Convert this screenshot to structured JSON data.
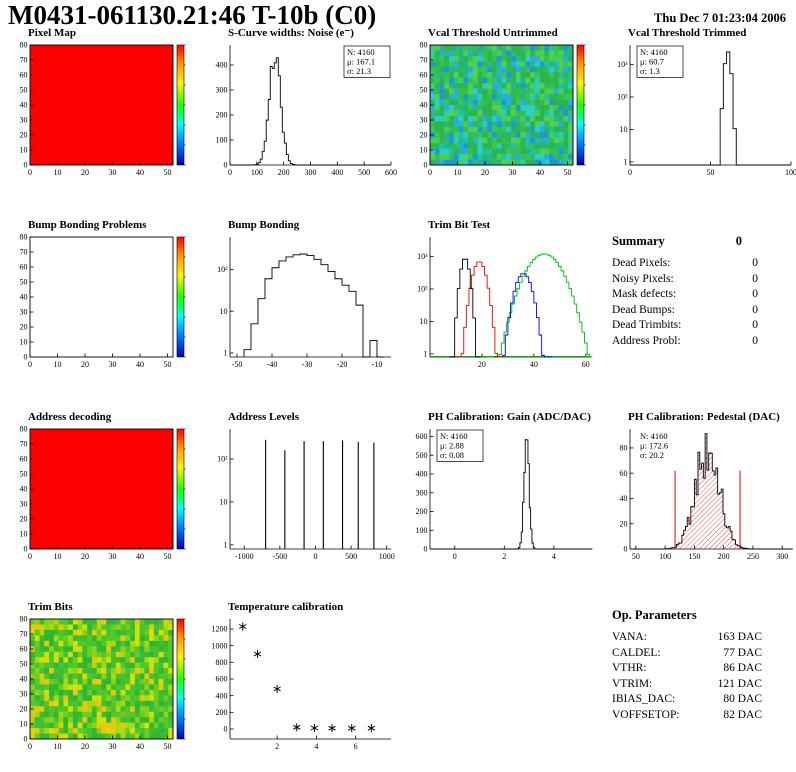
{
  "header": {
    "title": "M0431-061130.21:46 T-10b (C0)",
    "date": "Thu Dec 7 01:23:04 2006"
  },
  "summary": {
    "title": "Summary",
    "value": "0",
    "rows": [
      {
        "label": "Dead Pixels:",
        "value": "0"
      },
      {
        "label": "Noisy Pixels:",
        "value": "0"
      },
      {
        "label": "Mask defects:",
        "value": "0"
      },
      {
        "label": "Dead Bumps:",
        "value": "0"
      },
      {
        "label": "Dead Trimbits:",
        "value": "0"
      },
      {
        "label": "Address Probl:",
        "value": "0"
      }
    ]
  },
  "op_params": {
    "title": "Op. Parameters",
    "rows": [
      {
        "label": "VANA:",
        "value": "163 DAC"
      },
      {
        "label": "CALDEL:",
        "value": "77 DAC"
      },
      {
        "label": "VTHR:",
        "value": "86 DAC"
      },
      {
        "label": "VTRIM:",
        "value": "121 DAC"
      },
      {
        "label": "IBIAS_DAC:",
        "value": "80 DAC"
      },
      {
        "label": "VOFFSETOP:",
        "value": "82 DAC"
      }
    ]
  },
  "chart_data": [
    {
      "title": "Pixel Map",
      "type": "heat",
      "xrange": [
        0,
        52
      ],
      "yrange": [
        0,
        80
      ],
      "xticks": [
        0,
        10,
        20,
        30,
        40,
        50
      ],
      "yticks": [
        0,
        10,
        20,
        30,
        40,
        50,
        60,
        70,
        80
      ],
      "frame": true,
      "colorbar": true,
      "color": "#fa0000"
    },
    {
      "title": "S-Curve widths: Noise (e⁻)",
      "type": "gausshist",
      "xrange": [
        0,
        600
      ],
      "yrange": [
        0,
        480
      ],
      "xticks": [
        0,
        100,
        200,
        300,
        400,
        500,
        600
      ],
      "yticks": [
        0,
        100,
        200,
        300,
        400
      ],
      "bins": 80,
      "jitter": 0.12,
      "gauss": {
        "mean": 167,
        "sigma": 21,
        "peak": 450
      },
      "stats": {
        "pos": "tr",
        "box": true,
        "lines": [
          {
            "t": "N: 4160"
          },
          {
            "t": "μ: 167.1"
          },
          {
            "t": "σ: 21.3"
          }
        ]
      }
    },
    {
      "title": "Vcal Threshold Untrimmed",
      "type": "heat",
      "xrange": [
        0,
        52
      ],
      "yrange": [
        0,
        80
      ],
      "xticks": [
        0,
        10,
        20,
        30,
        40,
        50
      ],
      "yticks": [
        0,
        10,
        20,
        30,
        40,
        50,
        60,
        70,
        80
      ],
      "frame": true,
      "colorbar": true,
      "seed": 42,
      "palette": [
        "#2db54a",
        "#2db54a",
        "#35c046",
        "#28b764",
        "#22b886",
        "#1fc2a8",
        "#29cfc3",
        "#36c75a",
        "#49d053",
        "#1b9ad2",
        "#2fb87c",
        "#55d04a",
        "#27aee0",
        "#2db54a"
      ]
    },
    {
      "title": "Vcal Threshold Trimmed",
      "type": "gausshist",
      "logy": true,
      "xrange": [
        0,
        100
      ],
      "yrange": [
        0.8,
        4000
      ],
      "xticks": [
        0,
        50,
        100
      ],
      "yticks": [
        {
          "v": 1,
          "l": "1"
        },
        {
          "v": 10,
          "l": "10"
        },
        {
          "v": 100,
          "l": "10²"
        },
        {
          "v": 1000,
          "l": "10³"
        }
      ],
      "bins": 50,
      "gauss": {
        "mean": 60.7,
        "sigma": 1.3,
        "peak": 2500
      },
      "stats": {
        "pos": "tl",
        "box": true,
        "lines": [
          {
            "t": "N: 4160"
          },
          {
            "t": "μ: 60.7"
          },
          {
            "t": "σ: 1.3"
          }
        ]
      }
    },
    {
      "title": "Bump Bonding Problems",
      "type": "heat",
      "xrange": [
        0,
        52
      ],
      "yrange": [
        0,
        80
      ],
      "xticks": [
        0,
        10,
        20,
        30,
        40,
        50
      ],
      "yticks": [
        0,
        10,
        20,
        30,
        40,
        50,
        60,
        70,
        80
      ],
      "frame": true,
      "colorbar": true
    },
    {
      "title": "Bump Bonding",
      "type": "steps",
      "logy": true,
      "xrange": [
        -52,
        -6
      ],
      "yrange": [
        0.8,
        600
      ],
      "xticks": [
        -50,
        -40,
        -30,
        -20,
        -10
      ],
      "yticks": [
        {
          "v": 1,
          "l": "1"
        },
        {
          "v": 10,
          "l": "10"
        },
        {
          "v": 100,
          "l": "10²"
        }
      ],
      "binw": 2,
      "points": [
        [
          -48,
          1.2
        ],
        [
          -46,
          5
        ],
        [
          -44,
          20
        ],
        [
          -42,
          60
        ],
        [
          -40,
          110
        ],
        [
          -38,
          160
        ],
        [
          -36,
          200
        ],
        [
          -34,
          225
        ],
        [
          -32,
          235
        ],
        [
          -30,
          215
        ],
        [
          -28,
          175
        ],
        [
          -26,
          130
        ],
        [
          -24,
          90
        ],
        [
          -22,
          60
        ],
        [
          -20,
          42
        ],
        [
          -18,
          30
        ],
        [
          -16,
          14
        ],
        [
          -14,
          0
        ],
        [
          -12,
          2
        ],
        [
          -10,
          0
        ]
      ]
    },
    {
      "title": "Trim Bit Test",
      "type": "multigauss",
      "logy": true,
      "xrange": [
        0,
        62
      ],
      "yrange": [
        0.8,
        4000
      ],
      "xticks": [
        20,
        40,
        60
      ],
      "yticks": [
        {
          "v": 1,
          "l": "1"
        },
        {
          "v": 10,
          "l": "10"
        },
        {
          "v": 100,
          "l": "10²"
        },
        {
          "v": 1000,
          "l": "10³"
        }
      ],
      "binw": 1,
      "series": [
        {
          "color": "#00bb00",
          "mean": 44,
          "sigma": 4.5,
          "peak": 1200,
          "base": true
        },
        {
          "color": "#0000ee",
          "mean": 36,
          "sigma": 2.2,
          "peak": 300
        },
        {
          "color": "#ee0000",
          "mean": 19,
          "sigma": 1.8,
          "peak": 700
        },
        {
          "color": "#000000",
          "mean": 13.5,
          "sigma": 1.2,
          "peak": 900
        }
      ]
    },
    {
      "title": "Address decoding",
      "type": "heat",
      "xrange": [
        0,
        52
      ],
      "yrange": [
        0,
        80
      ],
      "xticks": [
        0,
        10,
        20,
        30,
        40,
        50
      ],
      "yticks": [
        0,
        10,
        20,
        30,
        40,
        50,
        60,
        70,
        80
      ],
      "frame": true,
      "colorbar": true,
      "color": "#fa0000"
    },
    {
      "title": "Address Levels",
      "type": "spikes",
      "logy": true,
      "xrange": [
        -1200,
        1060
      ],
      "yrange": [
        0.8,
        500
      ],
      "xticks": [
        -1000,
        -500,
        0,
        500,
        1000
      ],
      "yticks": [
        {
          "v": 1,
          "l": "1"
        },
        {
          "v": 10,
          "l": "10"
        },
        {
          "v": 100,
          "l": "10²"
        }
      ],
      "spikes": [
        [
          -700,
          280
        ],
        [
          -430,
          160
        ],
        [
          -160,
          260
        ],
        [
          110,
          260
        ],
        [
          380,
          270
        ],
        [
          600,
          250
        ],
        [
          820,
          240
        ]
      ]
    },
    {
      "title": "PH Calibration: Gain (ADC/DAC)",
      "type": "gausshist",
      "xrange": [
        -1,
        5.5
      ],
      "yrange": [
        0,
        640
      ],
      "xticks": [
        0,
        2,
        4
      ],
      "yticks": [
        0,
        100,
        200,
        300,
        400,
        500,
        600
      ],
      "bins": 120,
      "jitter": 0.1,
      "gauss": {
        "mean": 2.9,
        "sigma": 0.1,
        "peak": 600
      },
      "stats": {
        "pos": "tl",
        "box": true,
        "lines": [
          {
            "t": "N: 4160"
          },
          {
            "t": "μ: 2.88"
          },
          {
            "t": "σ: 0.08"
          }
        ]
      }
    },
    {
      "title": "PH Calibration: Pedestal (DAC)",
      "type": "gausshist",
      "xrange": [
        40,
        315
      ],
      "yrange": [
        0,
        95
      ],
      "xticks": [
        50,
        100,
        150,
        200,
        250,
        300
      ],
      "yticks": [
        0,
        20,
        40,
        60,
        80
      ],
      "bins": 90,
      "jitter": 0.3,
      "hatch": true,
      "gauss": {
        "mean": 172.6,
        "sigma": 20.2,
        "peak": 80
      },
      "vlines": [
        {
          "x": 117,
          "h": 62,
          "color": "#dd0000"
        },
        {
          "x": 228,
          "h": 62,
          "color": "#dd0000"
        }
      ],
      "stats": {
        "pos": "tl",
        "box": false,
        "lines": [
          {
            "t": "N: 4160",
            "c": "#000000"
          },
          {
            "t": "μ: 172.6",
            "c": "#dd0000"
          },
          {
            "t": "σ: 20.2",
            "c": "#dd0000"
          }
        ]
      }
    },
    {
      "title": "Trim Bits",
      "type": "heat",
      "xrange": [
        0,
        52
      ],
      "yrange": [
        0,
        80
      ],
      "xticks": [
        0,
        10,
        20,
        30,
        40,
        50
      ],
      "yticks": [
        0,
        10,
        20,
        30,
        40,
        50,
        60,
        70,
        80
      ],
      "frame": true,
      "colorbar": true,
      "seed": 99,
      "palette": [
        "#2fb635",
        "#3cbe2e",
        "#52c728",
        "#6ccd20",
        "#8ad319",
        "#aad910",
        "#d2e00a",
        "#35ba3c",
        "#46c232",
        "#e8c70e",
        "#2fb635",
        "#52c728"
      ]
    },
    {
      "title": "Temperature calibration",
      "type": "scatter",
      "xrange": [
        -0.4,
        7.8
      ],
      "yrange": [
        -120,
        1320
      ],
      "xticks": [
        2,
        4,
        6
      ],
      "yticks": [
        0,
        200,
        400,
        600,
        800,
        1000,
        1200
      ],
      "points": [
        [
          0.25,
          1230
        ],
        [
          1,
          900
        ],
        [
          2,
          480
        ],
        [
          3,
          20
        ],
        [
          3.9,
          12
        ],
        [
          4.8,
          10
        ],
        [
          5.8,
          10
        ],
        [
          6.8,
          10
        ]
      ]
    }
  ]
}
